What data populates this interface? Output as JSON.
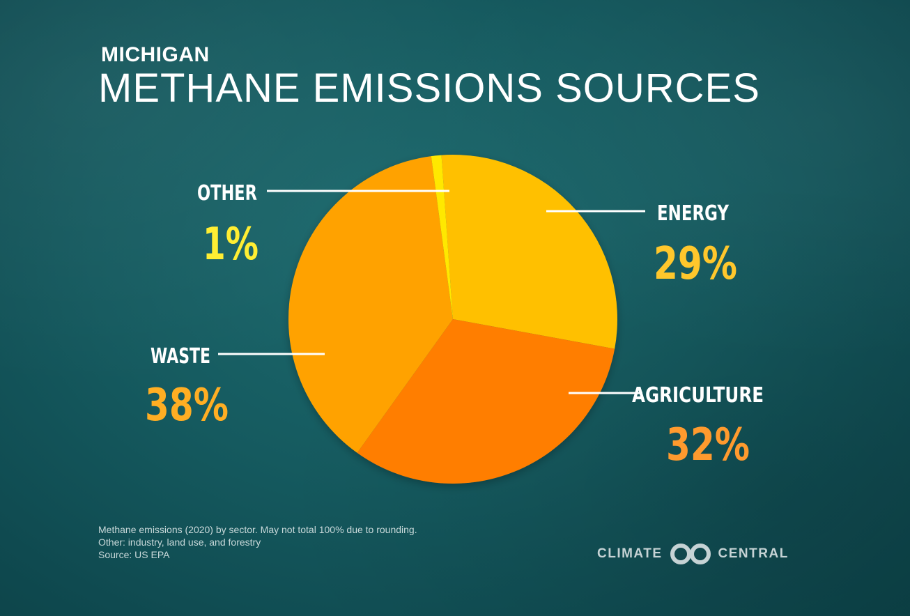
{
  "header": {
    "subtitle": "MICHIGAN",
    "title": "METHANE EMISSIONS SOURCES"
  },
  "chart_data": {
    "type": "pie",
    "unit": "%",
    "slices": [
      {
        "label": "ENERGY",
        "value": 29,
        "value_label": "29%",
        "color": "#FFC000",
        "label_color": "#FFC72C"
      },
      {
        "label": "AGRICULTURE",
        "value": 32,
        "value_label": "32%",
        "color": "#FF7E00",
        "label_color": "#FF9A2E"
      },
      {
        "label": "WASTE",
        "value": 38,
        "value_label": "38%",
        "color": "#FFA200",
        "label_color": "#FFAE23"
      },
      {
        "label": "OTHER",
        "value": 1,
        "value_label": "1%",
        "color": "#FFE800",
        "label_color": "#FFEE33"
      }
    ]
  },
  "footnotes": [
    "Methane emissions (2020) by sector. May not total 100% due to rounding.",
    "Other: industry, land use, and forestry",
    "Source: US EPA"
  ],
  "logo": {
    "left_text": "CLIMATE",
    "right_text": "CENTRAL",
    "icon": "climate-central-rings-icon",
    "color": "#C6D3D5"
  }
}
